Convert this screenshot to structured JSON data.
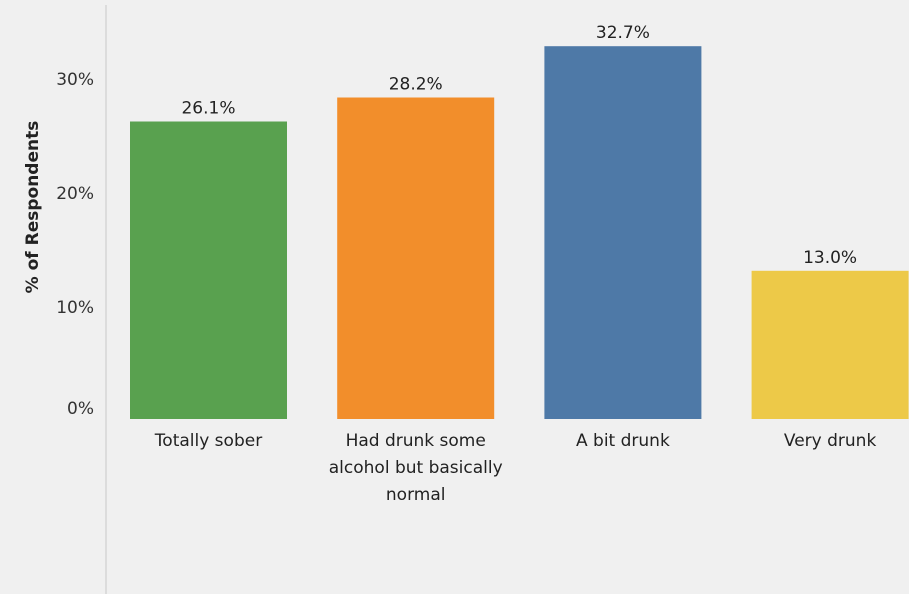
{
  "chart_data": {
    "type": "bar",
    "title": "",
    "xlabel": "",
    "ylabel": "% of Respondents",
    "ylim": [
      0,
      36
    ],
    "y_ticks": [
      0,
      10,
      20,
      30
    ],
    "y_tick_labels": [
      "0%",
      "10%",
      "20%",
      "30%"
    ],
    "grid": false,
    "categories": [
      [
        "Totally sober"
      ],
      [
        "Had drunk some",
        "alcohol but basically",
        "normal"
      ],
      [
        "A bit drunk"
      ],
      [
        "Very drunk"
      ]
    ],
    "values": [
      26.1,
      28.2,
      32.7,
      13.0
    ],
    "value_labels": [
      "26.1%",
      "28.2%",
      "32.7%",
      "13.0%"
    ],
    "colors": [
      "#59a14f",
      "#f28e2b",
      "#4e79a7",
      "#edc948"
    ]
  },
  "style": {
    "plot_background": "#f0f0f0",
    "axis_line_color": "#c8c8c8"
  }
}
